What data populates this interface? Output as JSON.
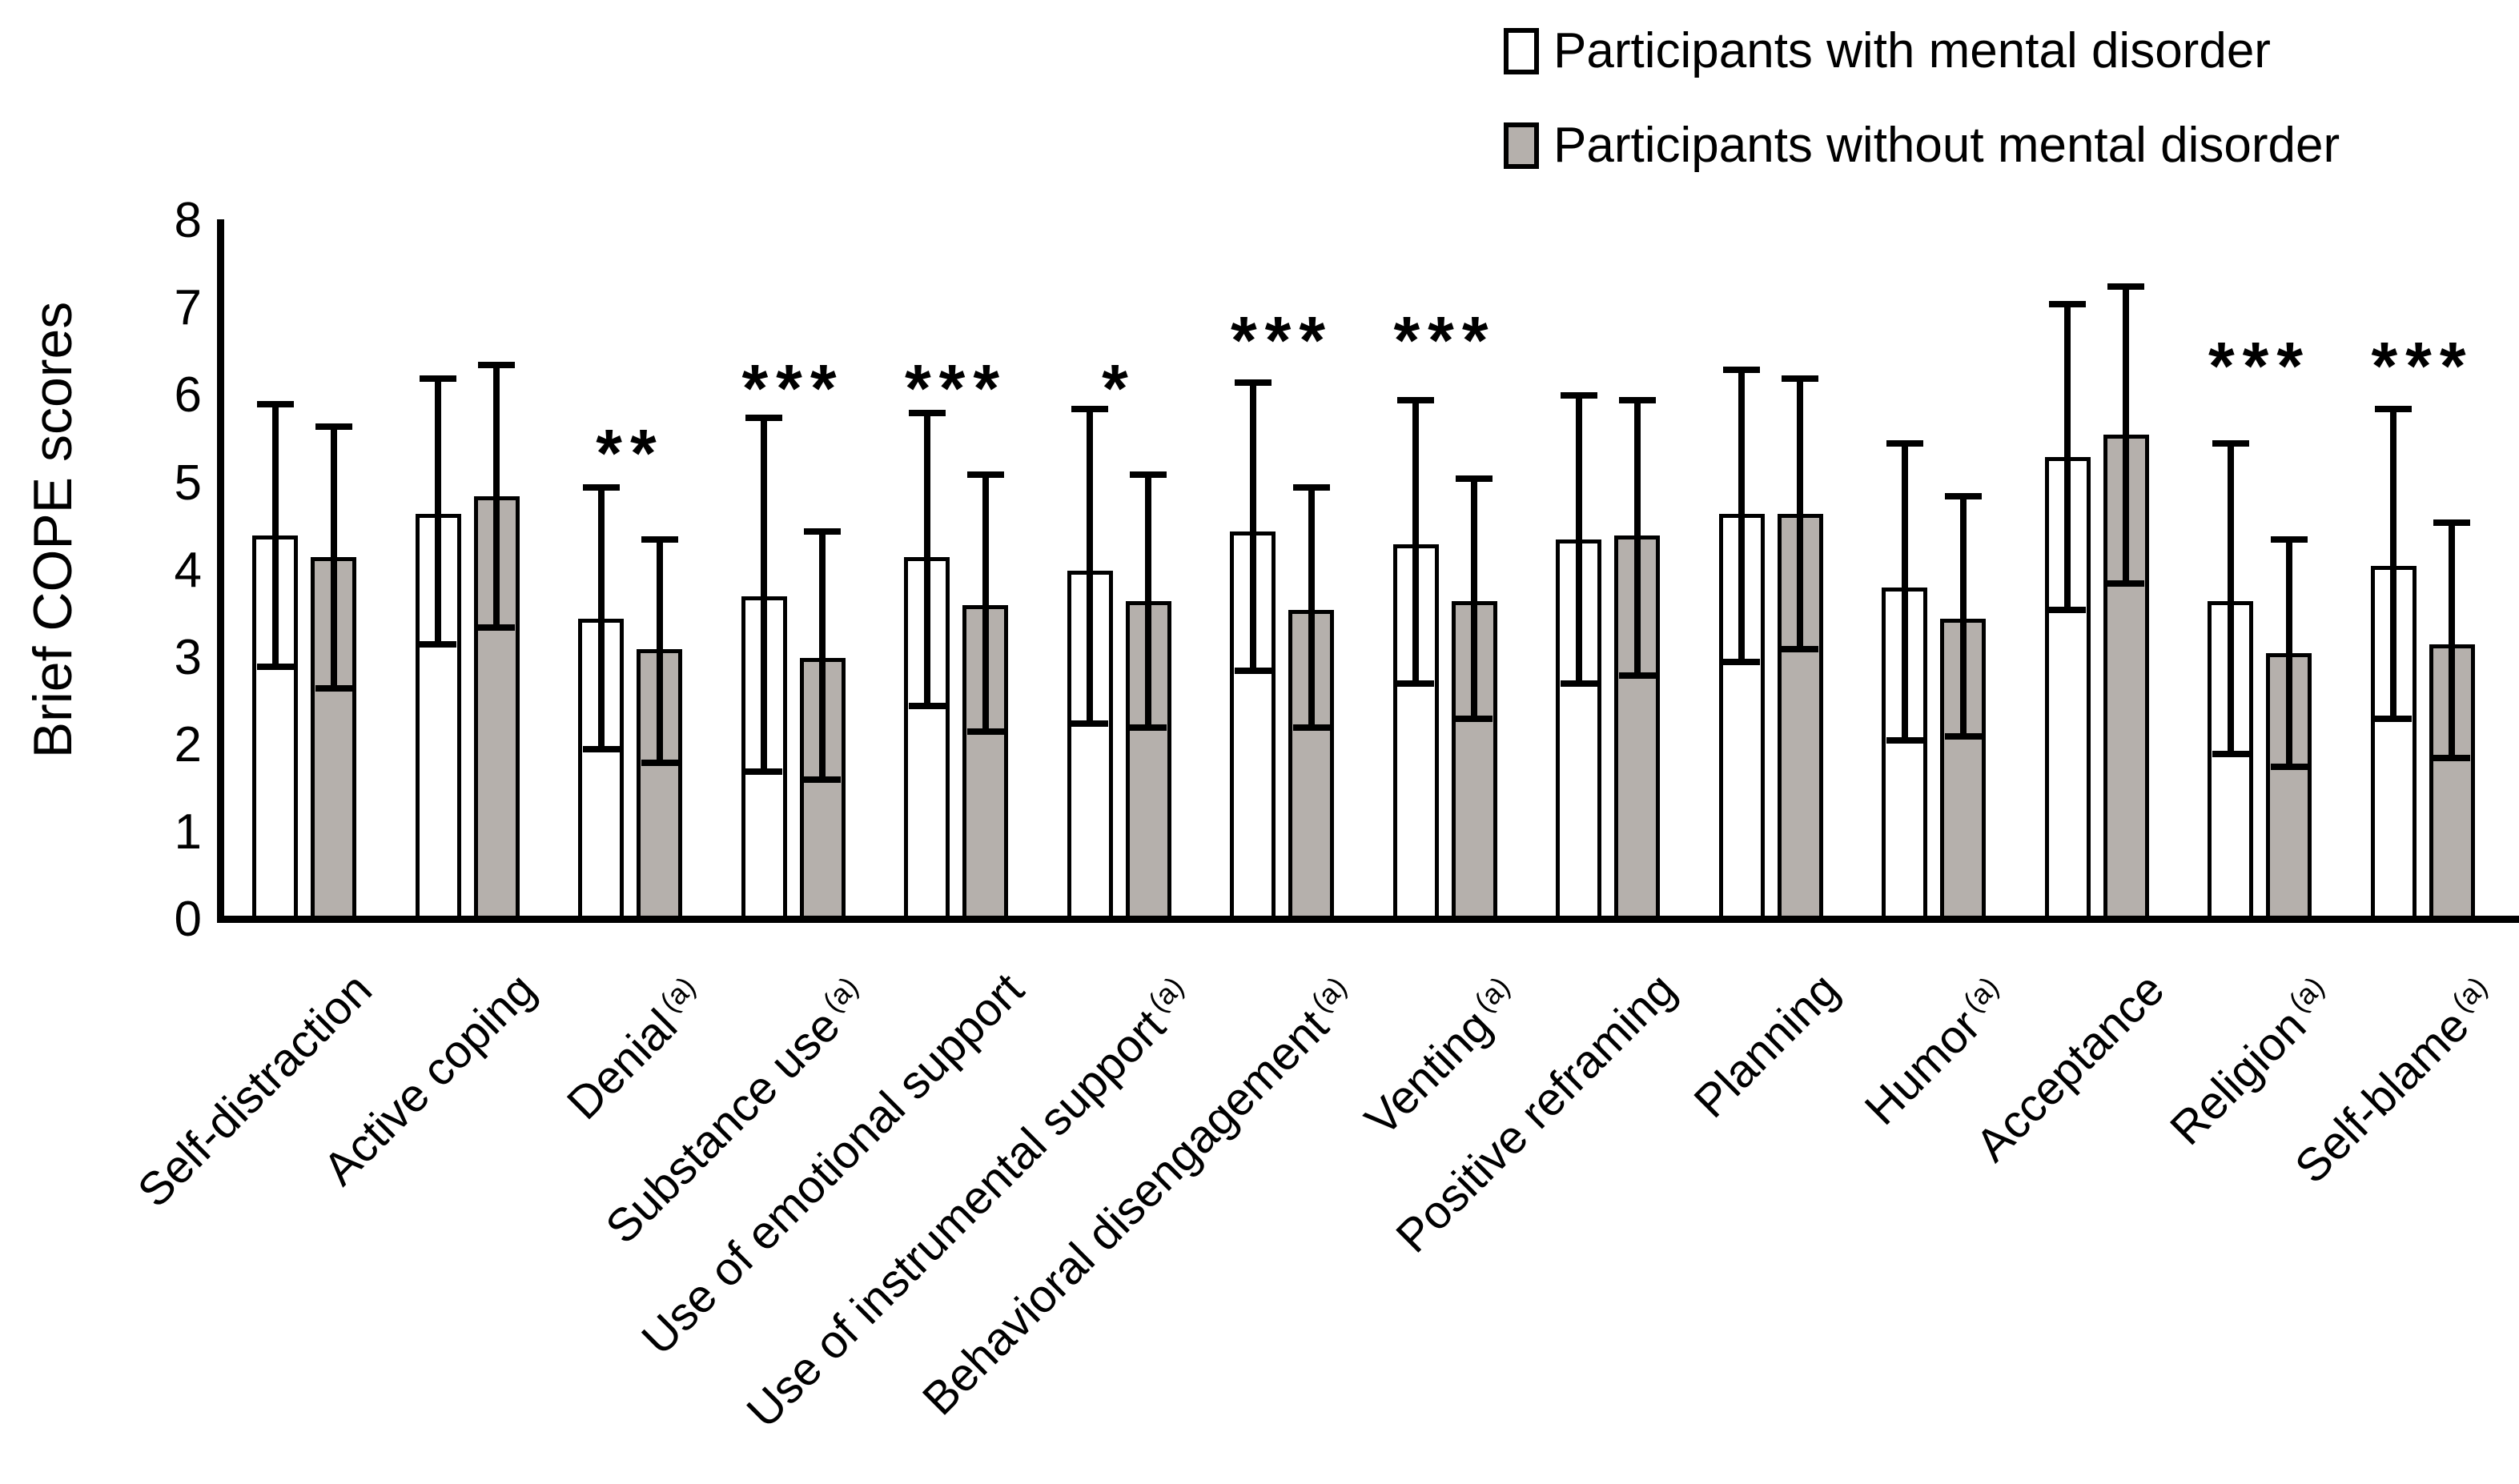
{
  "chart_data": {
    "type": "bar",
    "title": "",
    "ylabel": "Brief COPE scores",
    "xlabel": "",
    "ylim": [
      0,
      8
    ],
    "yticks": [
      0,
      1,
      2,
      3,
      4,
      5,
      6,
      7,
      8
    ],
    "grid": false,
    "legend_position": "top-right",
    "line_color": "#000000",
    "background_color": "#ffffff",
    "categories": [
      {
        "label": "Self-distraction",
        "sup": ""
      },
      {
        "label": "Active coping",
        "sup": ""
      },
      {
        "label": "Denial",
        "sup": "(a)"
      },
      {
        "label": "Substance use",
        "sup": "(a)"
      },
      {
        "label": "Use of emotional support",
        "sup": ""
      },
      {
        "label": "Use of instrumental support",
        "sup": "(a)"
      },
      {
        "label": "Behavioral disengagement",
        "sup": "(a)"
      },
      {
        "label": "Venting",
        "sup": "(a)"
      },
      {
        "label": "Positive reframing",
        "sup": ""
      },
      {
        "label": "Planning",
        "sup": ""
      },
      {
        "label": "Humor",
        "sup": "(a)"
      },
      {
        "label": "Acceptance",
        "sup": ""
      },
      {
        "label": "Religion",
        "sup": "(a)"
      },
      {
        "label": "Self-blame",
        "sup": "(a)"
      }
    ],
    "series": [
      {
        "key": "with",
        "name": "Participants with mental disorder",
        "fill": "#ffffff",
        "values": [
          4.4,
          4.65,
          3.45,
          3.7,
          4.15,
          4.0,
          4.45,
          4.3,
          4.35,
          4.65,
          3.8,
          5.3,
          3.65,
          4.05
        ],
        "err_top": [
          5.9,
          6.2,
          4.95,
          5.75,
          5.8,
          5.85,
          6.15,
          5.95,
          6.0,
          6.3,
          5.45,
          7.05,
          5.45,
          5.85
        ],
        "err_bot": [
          2.9,
          3.15,
          1.95,
          1.7,
          2.45,
          2.25,
          2.85,
          2.7,
          2.7,
          2.95,
          2.05,
          3.55,
          1.9,
          2.3
        ]
      },
      {
        "key": "without",
        "name": "Participants without mental disorder",
        "fill": "#b5b0ac",
        "values": [
          4.15,
          4.85,
          3.1,
          3.0,
          3.6,
          3.65,
          3.55,
          3.65,
          4.4,
          4.65,
          3.45,
          5.55,
          3.05,
          3.15
        ],
        "err_top": [
          5.65,
          6.35,
          4.35,
          4.45,
          5.1,
          5.1,
          4.95,
          5.05,
          5.95,
          6.2,
          4.85,
          7.25,
          4.35,
          4.55
        ],
        "err_bot": [
          2.65,
          3.35,
          1.8,
          1.6,
          2.15,
          2.2,
          2.2,
          2.3,
          2.8,
          3.1,
          2.1,
          3.85,
          1.75,
          1.85
        ]
      }
    ],
    "sig_markers": [
      "",
      "",
      "**",
      "***",
      "***",
      "*",
      "***",
      "***",
      "",
      "",
      "",
      "",
      "***",
      "***"
    ],
    "sig_y": [
      null,
      null,
      5.45,
      6.2,
      6.2,
      6.2,
      6.75,
      6.75,
      null,
      null,
      null,
      null,
      6.45,
      6.45
    ]
  }
}
